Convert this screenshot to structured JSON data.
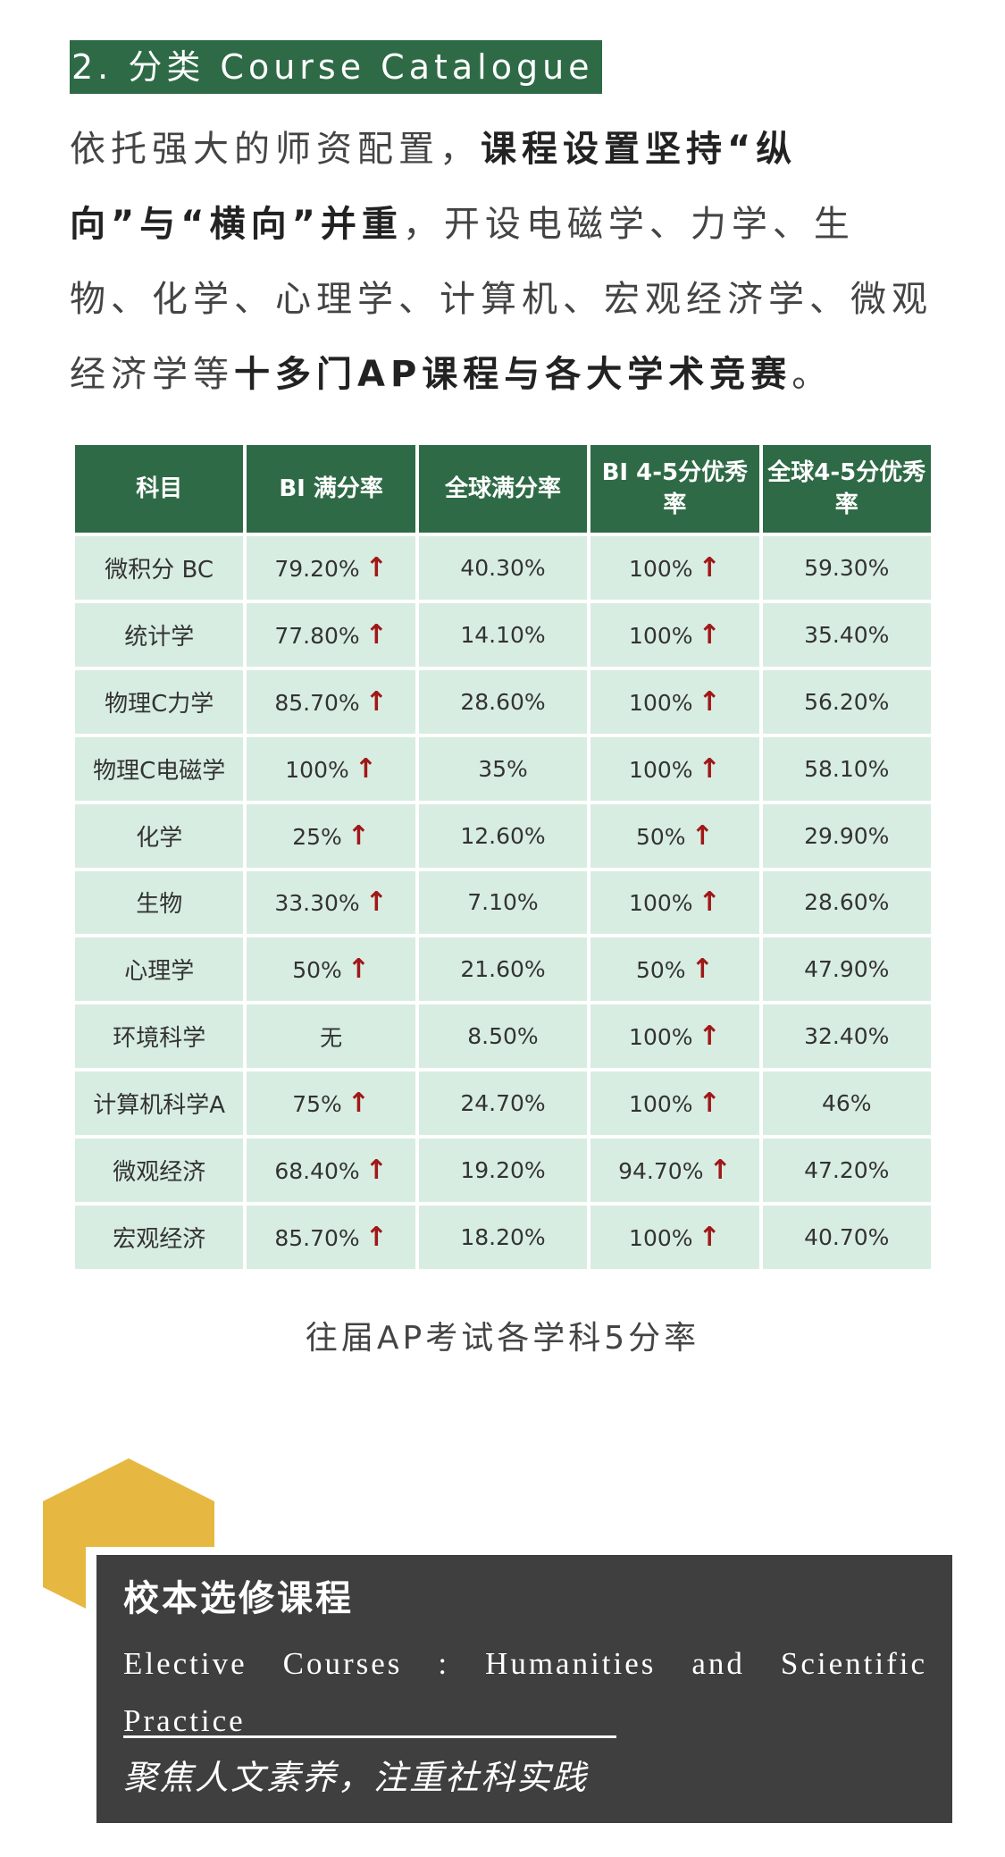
{
  "section": {
    "title": "2. 分类 Course Catalogue"
  },
  "intro": {
    "p1": "依托强大的师资配置，",
    "b1": "课程设置坚持“纵向”与“横向”并重",
    "p2": "，开设电磁学、力学、生物、化学、心理学、计算机、宏观经济学、微观经济学等",
    "b2": "十多门AP课程与各大学术竞赛",
    "p3": "。"
  },
  "table": {
    "headers": [
      "科目",
      "BI 满分率",
      "全球满分率",
      "BI 4-5分优秀率",
      "全球4-5分优秀率"
    ],
    "rows": [
      {
        "subject": "微积分 BC",
        "bi_full": "79.20%",
        "bi_full_up": true,
        "global_full": "40.30%",
        "bi_45": "100%",
        "bi_45_up": true,
        "global_45": "59.30%"
      },
      {
        "subject": "统计学",
        "bi_full": "77.80%",
        "bi_full_up": true,
        "global_full": "14.10%",
        "bi_45": "100%",
        "bi_45_up": true,
        "global_45": "35.40%"
      },
      {
        "subject": "物理C力学",
        "bi_full": "85.70%",
        "bi_full_up": true,
        "global_full": "28.60%",
        "bi_45": "100%",
        "bi_45_up": true,
        "global_45": "56.20%"
      },
      {
        "subject": "物理C电磁学",
        "bi_full": "100%",
        "bi_full_up": true,
        "global_full": "35%",
        "bi_45": "100%",
        "bi_45_up": true,
        "global_45": "58.10%"
      },
      {
        "subject": "化学",
        "bi_full": "25%",
        "bi_full_up": true,
        "global_full": "12.60%",
        "bi_45": "50%",
        "bi_45_up": true,
        "global_45": "29.90%"
      },
      {
        "subject": "生物",
        "bi_full": "33.30%",
        "bi_full_up": true,
        "global_full": "7.10%",
        "bi_45": "100%",
        "bi_45_up": true,
        "global_45": "28.60%"
      },
      {
        "subject": "心理学",
        "bi_full": "50%",
        "bi_full_up": true,
        "global_full": "21.60%",
        "bi_45": "50%",
        "bi_45_up": true,
        "global_45": "47.90%"
      },
      {
        "subject": "环境科学",
        "bi_full": "无",
        "bi_full_up": false,
        "global_full": "8.50%",
        "bi_45": "100%",
        "bi_45_up": true,
        "global_45": "32.40%"
      },
      {
        "subject": "计算机科学A",
        "bi_full": "75%",
        "bi_full_up": true,
        "global_full": "24.70%",
        "bi_45": "100%",
        "bi_45_up": true,
        "global_45": "46%"
      },
      {
        "subject": "微观经济",
        "bi_full": "68.40%",
        "bi_full_up": true,
        "global_full": "19.20%",
        "bi_45": "94.70%",
        "bi_45_up": true,
        "global_45": "47.20%"
      },
      {
        "subject": "宏观经济",
        "bi_full": "85.70%",
        "bi_full_up": true,
        "global_full": "18.20%",
        "bi_45": "100%",
        "bi_45_up": true,
        "global_45": "40.70%"
      }
    ],
    "arrow_glyph": "↑",
    "header_color": "#2f6a47",
    "cell_color": "#d8ede1",
    "arrow_color": "#a01818"
  },
  "caption": "往届AP考试各学科5分率",
  "elective": {
    "title": "校本选修课程",
    "en": "Elective Courses : Humanities and Scientific Practice",
    "cn": "聚焦人文素养，注重社科实践",
    "accent": "#e6b841"
  }
}
